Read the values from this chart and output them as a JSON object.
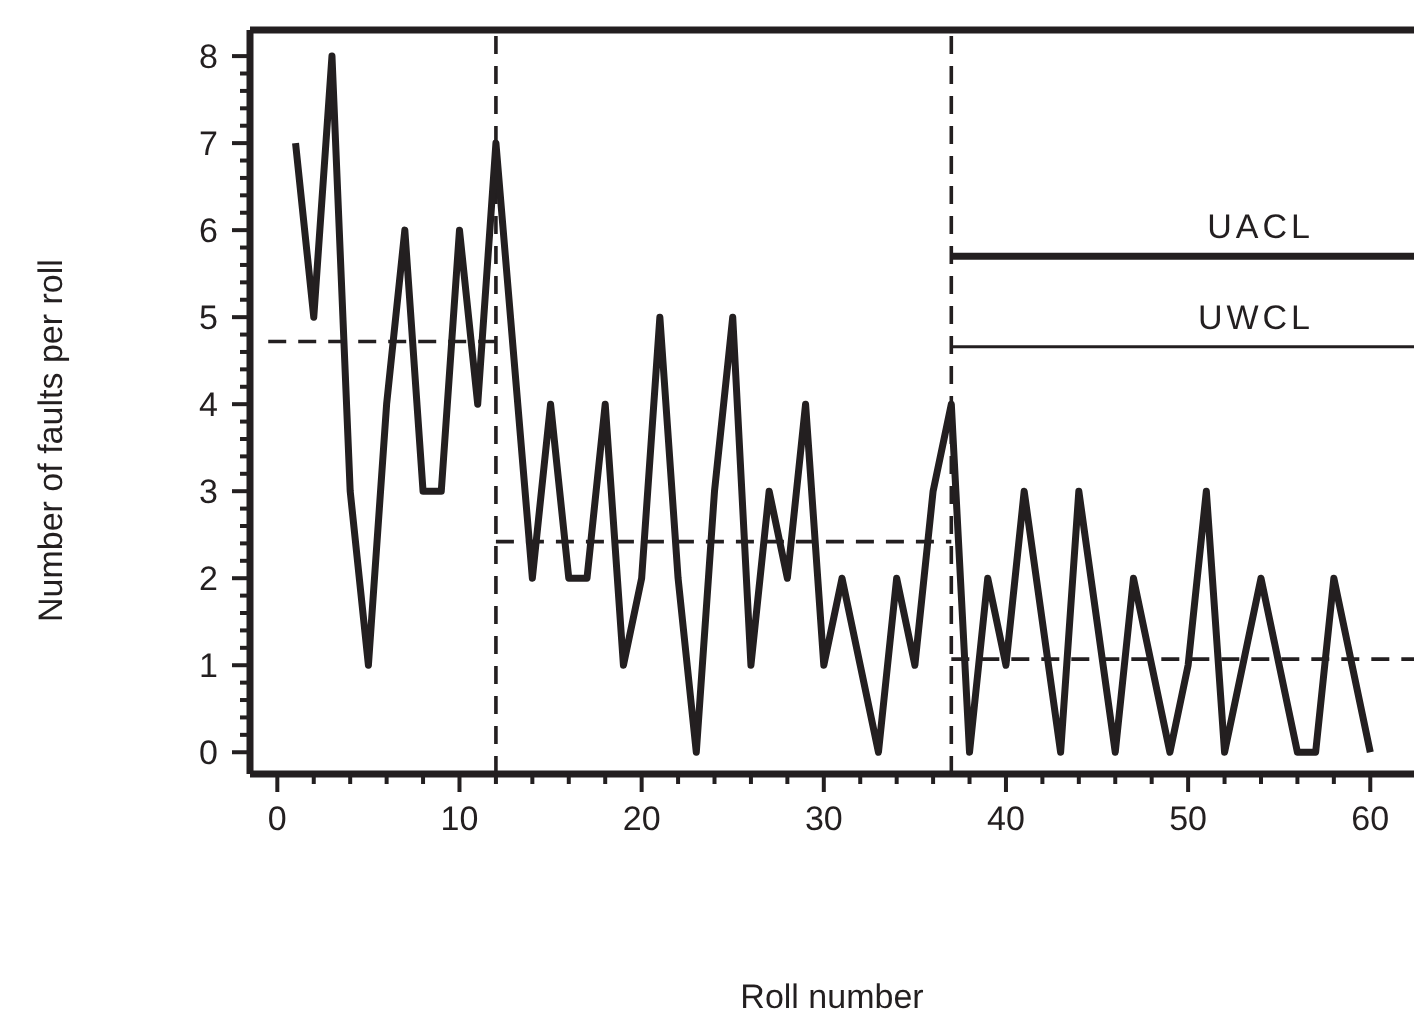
{
  "chart_data": {
    "type": "line",
    "xlabel": "Roll number",
    "ylabel": "Number of faults per roll",
    "xlim": [
      -1.5,
      62.4
    ],
    "ylim": [
      -0.25,
      8.3
    ],
    "xticks": [
      0,
      {
        "value": 2,
        "label": null
      },
      {
        "value": 4,
        "label": null
      },
      {
        "value": 6,
        "label": null
      },
      {
        "value": 8,
        "label": null
      },
      10,
      {
        "value": 12,
        "label": null
      },
      {
        "value": 14,
        "label": null
      },
      {
        "value": 16,
        "label": null
      },
      {
        "value": 18,
        "label": null
      },
      20,
      {
        "value": 22,
        "label": null
      },
      {
        "value": 24,
        "label": null
      },
      {
        "value": 26,
        "label": null
      },
      {
        "value": 28,
        "label": null
      },
      30,
      {
        "value": 32,
        "label": null
      },
      {
        "value": 34,
        "label": null
      },
      {
        "value": 36,
        "label": null
      },
      {
        "value": 38,
        "label": null
      },
      40,
      {
        "value": 42,
        "label": null
      },
      {
        "value": 44,
        "label": null
      },
      {
        "value": 46,
        "label": null
      },
      {
        "value": 48,
        "label": null
      },
      50,
      {
        "value": 52,
        "label": null
      },
      {
        "value": 54,
        "label": null
      },
      {
        "value": 56,
        "label": null
      },
      {
        "value": 58,
        "label": null
      },
      60
    ],
    "yticks": [
      0,
      {
        "value": 0.2,
        "label": null
      },
      {
        "value": 0.4,
        "label": null
      },
      {
        "value": 0.6,
        "label": null
      },
      {
        "value": 0.8,
        "label": null
      },
      1,
      {
        "value": 1.2,
        "label": null
      },
      {
        "value": 1.4,
        "label": null
      },
      {
        "value": 1.6,
        "label": null
      },
      {
        "value": 1.8,
        "label": null
      },
      2,
      {
        "value": 2.2,
        "label": null
      },
      {
        "value": 2.4,
        "label": null
      },
      {
        "value": 2.6,
        "label": null
      },
      {
        "value": 2.8,
        "label": null
      },
      3,
      {
        "value": 3.2,
        "label": null
      },
      {
        "value": 3.4,
        "label": null
      },
      {
        "value": 3.6,
        "label": null
      },
      {
        "value": 3.8,
        "label": null
      },
      4,
      {
        "value": 4.2,
        "label": null
      },
      {
        "value": 4.4,
        "label": null
      },
      {
        "value": 4.6,
        "label": null
      },
      {
        "value": 4.8,
        "label": null
      },
      5,
      {
        "value": 5.2,
        "label": null
      },
      {
        "value": 5.4,
        "label": null
      },
      {
        "value": 5.6,
        "label": null
      },
      {
        "value": 5.8,
        "label": null
      },
      6,
      {
        "value": 6.2,
        "label": null
      },
      {
        "value": 6.4,
        "label": null
      },
      {
        "value": 6.6,
        "label": null
      },
      {
        "value": 6.8,
        "label": null
      },
      7,
      {
        "value": 7.2,
        "label": null
      },
      {
        "value": 7.4,
        "label": null
      },
      {
        "value": 7.6,
        "label": null
      },
      {
        "value": 7.8,
        "label": null
      },
      8
    ],
    "grid": false,
    "legend": false,
    "marker": "none",
    "series": [
      {
        "color": "#231f20",
        "line_style": "solid",
        "x": [
          1,
          2,
          3,
          4,
          5,
          6,
          7,
          8,
          9,
          10,
          11,
          12,
          13,
          14,
          15,
          16,
          17,
          18,
          19,
          20,
          21,
          22,
          23,
          24,
          25,
          26,
          27,
          28,
          29,
          30,
          31,
          32,
          33,
          34,
          35,
          36,
          37,
          38,
          39,
          40,
          41,
          42,
          43,
          44,
          45,
          46,
          47,
          48,
          49,
          50,
          51,
          52,
          53,
          54,
          55,
          56,
          57,
          58,
          59,
          60
        ],
        "values": [
          7,
          5,
          8,
          3,
          1,
          4,
          6,
          3,
          3,
          6,
          4,
          7,
          4.5,
          2,
          4,
          2,
          2,
          4,
          1,
          2,
          5,
          2,
          0,
          3,
          5,
          1,
          3,
          2,
          4,
          1,
          2,
          1,
          0,
          2,
          1,
          3,
          4,
          0,
          2,
          1,
          3,
          1.5,
          0,
          3,
          1.5,
          0,
          2,
          1,
          0,
          1,
          3,
          0,
          1,
          2,
          1,
          0,
          0,
          2,
          1,
          0
        ]
      },
      {
        "color": "#231f20",
        "line_style": "dashed",
        "x": [
          -0.5,
          12
        ],
        "values": [
          4.72,
          4.72
        ]
      },
      {
        "color": "#231f20",
        "line_style": "dashed",
        "x": [
          12,
          37
        ],
        "values": [
          2.42,
          2.42
        ]
      },
      {
        "color": "#231f20",
        "line_style": "dashed",
        "x": [
          37,
          62.4
        ],
        "values": [
          1.07,
          1.07
        ]
      },
      {
        "name": "UACL",
        "color": "#231f20",
        "line_style": "solid",
        "x": [
          37,
          62.4
        ],
        "values": [
          5.7,
          5.7
        ]
      },
      {
        "name": "UWCL",
        "color": "#231f20",
        "line_style": "solid",
        "x": [
          37,
          62.4
        ],
        "values": [
          4.66,
          4.66
        ]
      }
    ],
    "ref_lines": [
      {
        "axis": "x",
        "value": 12,
        "line_style": "dashed",
        "color": "#231f20"
      },
      {
        "axis": "x",
        "value": 37,
        "line_style": "dashed",
        "color": "#231f20"
      }
    ]
  }
}
